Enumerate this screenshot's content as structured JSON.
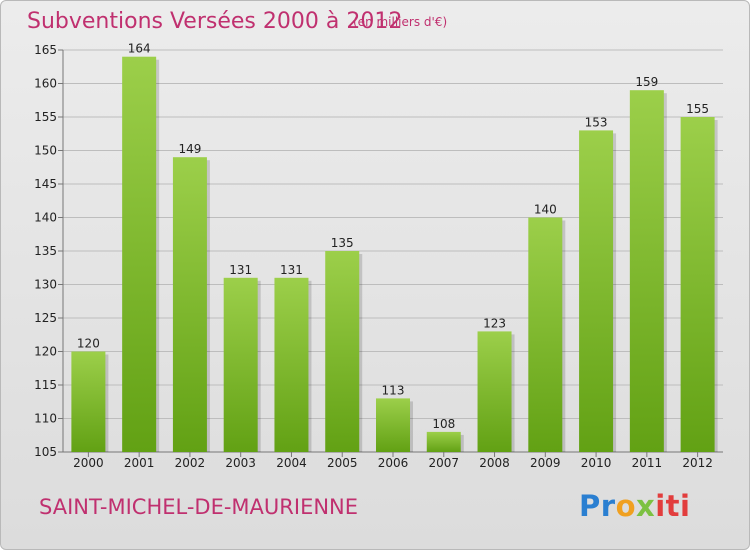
{
  "title": "Subventions Versées 2000 à 2012",
  "subtitle": "(en milliers d'€)",
  "commune": "SAINT-MICHEL-DE-MAURIENNE",
  "logo": {
    "text_parts": [
      "Pr",
      "o",
      "x",
      "iti"
    ],
    "colors": [
      "#2a7fd1",
      "#f0a020",
      "#7cc142",
      "#e23d3d"
    ]
  },
  "colors": {
    "bar_top": "#9ccf4a",
    "bar_bottom": "#62a114",
    "accent": "#c0306f",
    "grid": "#bdbdbd"
  },
  "chart_data": {
    "type": "bar",
    "title": "Subventions Versées 2000 à 2012",
    "xlabel": "",
    "ylabel": "",
    "categories": [
      "2000",
      "2001",
      "2002",
      "2003",
      "2004",
      "2005",
      "2006",
      "2007",
      "2008",
      "2009",
      "2010",
      "2011",
      "2012"
    ],
    "values": [
      120,
      164,
      149,
      131,
      131,
      135,
      113,
      108,
      123,
      140,
      153,
      159,
      155
    ],
    "ylim": [
      105,
      165
    ],
    "yticks": [
      105,
      110,
      115,
      120,
      125,
      130,
      135,
      140,
      145,
      150,
      155,
      160,
      165
    ],
    "grid": true,
    "data_labels": true
  }
}
